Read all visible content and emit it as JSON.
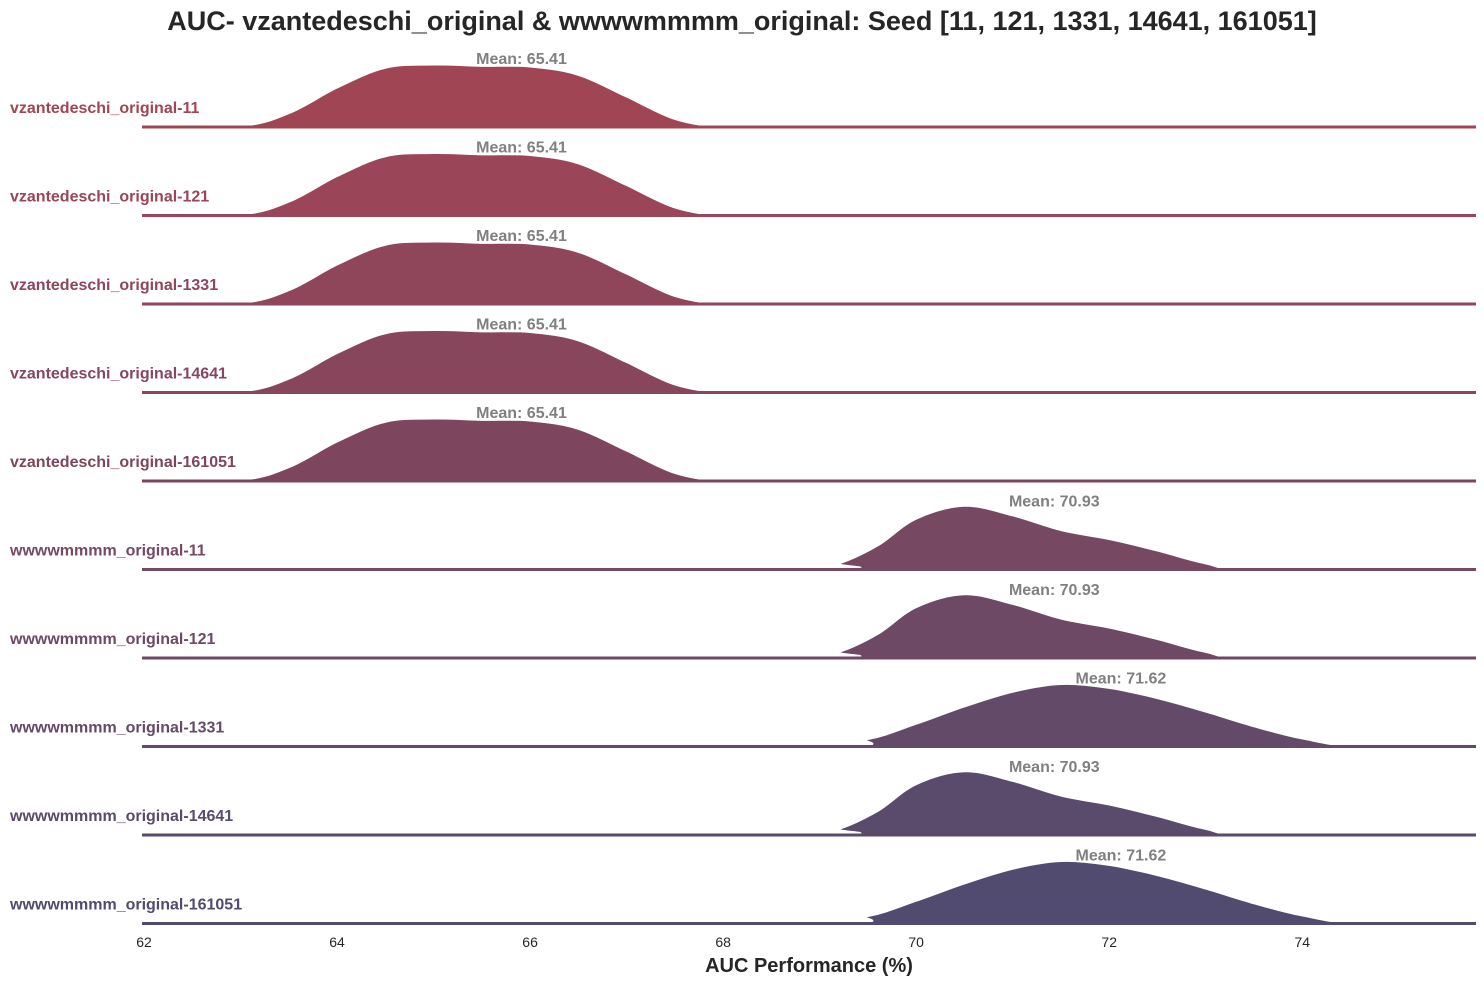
{
  "chart_data": {
    "type": "area",
    "subtype": "ridgeline-density",
    "title": "AUC- vzantedeschi_original & wwwwmmmm_original: Seed [11, 121, 1331, 14641, 161051]",
    "xlabel": "AUC Performance (%)",
    "ylabel": "",
    "xlim": [
      62,
      75.8
    ],
    "xticks": [
      62,
      64,
      66,
      68,
      70,
      72,
      74
    ],
    "grid": false,
    "series": [
      {
        "name": "vzantedeschi_original-11",
        "color": "#a04554",
        "mean": 65.41,
        "mean_label": "Mean: 65.41",
        "density": {
          "x": [
            62.0,
            63.0,
            63.5,
            64.0,
            64.5,
            65.0,
            65.5,
            66.0,
            66.5,
            67.0,
            67.5,
            68.0,
            68.5
          ],
          "y": [
            0.0,
            0.02,
            0.22,
            0.62,
            0.93,
            0.98,
            0.96,
            0.95,
            0.82,
            0.48,
            0.13,
            0.0,
            0.0
          ]
        }
      },
      {
        "name": "vzantedeschi_original-121",
        "color": "#9a4558",
        "mean": 65.41,
        "mean_label": "Mean: 65.41",
        "density": {
          "x": [
            62.0,
            63.0,
            63.5,
            64.0,
            64.5,
            65.0,
            65.5,
            66.0,
            66.5,
            67.0,
            67.5,
            68.0,
            68.5
          ],
          "y": [
            0.0,
            0.02,
            0.22,
            0.62,
            0.93,
            0.98,
            0.96,
            0.95,
            0.82,
            0.48,
            0.13,
            0.0,
            0.0
          ]
        }
      },
      {
        "name": "vzantedeschi_original-1331",
        "color": "#8f465a",
        "mean": 65.41,
        "mean_label": "Mean: 65.41",
        "density": {
          "x": [
            62.0,
            63.0,
            63.5,
            64.0,
            64.5,
            65.0,
            65.5,
            66.0,
            66.5,
            67.0,
            67.5,
            68.0,
            68.5
          ],
          "y": [
            0.0,
            0.02,
            0.22,
            0.62,
            0.93,
            0.98,
            0.96,
            0.95,
            0.82,
            0.48,
            0.13,
            0.0,
            0.0
          ]
        }
      },
      {
        "name": "vzantedeschi_original-14641",
        "color": "#87465c",
        "mean": 65.41,
        "mean_label": "Mean: 65.41",
        "density": {
          "x": [
            62.0,
            63.0,
            63.5,
            64.0,
            64.5,
            65.0,
            65.5,
            66.0,
            66.5,
            67.0,
            67.5,
            68.0,
            68.5
          ],
          "y": [
            0.0,
            0.02,
            0.22,
            0.62,
            0.93,
            0.98,
            0.96,
            0.95,
            0.82,
            0.48,
            0.13,
            0.0,
            0.0
          ]
        }
      },
      {
        "name": "vzantedeschi_original-161051",
        "color": "#7e465e",
        "mean": 65.41,
        "mean_label": "Mean: 65.41",
        "density": {
          "x": [
            62.0,
            63.0,
            63.5,
            64.0,
            64.5,
            65.0,
            65.5,
            66.0,
            66.5,
            67.0,
            67.5,
            68.0,
            68.5
          ],
          "y": [
            0.0,
            0.02,
            0.22,
            0.62,
            0.93,
            0.98,
            0.96,
            0.95,
            0.82,
            0.48,
            0.13,
            0.0,
            0.0
          ]
        }
      },
      {
        "name": "wwwwmmmm_original-11",
        "color": "#764862",
        "mean": 70.93,
        "mean_label": "Mean: 70.93",
        "density": {
          "x": [
            62.0,
            68.8,
            69.2,
            69.6,
            70.0,
            70.5,
            71.0,
            71.5,
            72.0,
            72.5,
            73.0,
            73.5,
            75.8
          ],
          "y": [
            0.0,
            0.0,
            0.1,
            0.38,
            0.8,
            1.0,
            0.85,
            0.62,
            0.48,
            0.3,
            0.1,
            0.0,
            0.0
          ]
        }
      },
      {
        "name": "wwwwmmmm_original-121",
        "color": "#6d4966",
        "mean": 70.93,
        "mean_label": "Mean: 70.93",
        "density": {
          "x": [
            62.0,
            68.8,
            69.2,
            69.6,
            70.0,
            70.5,
            71.0,
            71.5,
            72.0,
            72.5,
            73.0,
            73.5,
            75.8
          ],
          "y": [
            0.0,
            0.0,
            0.1,
            0.38,
            0.8,
            1.0,
            0.85,
            0.62,
            0.48,
            0.3,
            0.1,
            0.0,
            0.0
          ]
        }
      },
      {
        "name": "wwwwmmmm_original-1331",
        "color": "#644a69",
        "mean": 71.62,
        "mean_label": "Mean: 71.62",
        "density": {
          "x": [
            62.0,
            68.8,
            69.5,
            70.0,
            70.5,
            71.0,
            71.5,
            72.0,
            72.5,
            73.0,
            73.5,
            74.0,
            74.6,
            75.8
          ],
          "y": [
            0.0,
            0.0,
            0.12,
            0.36,
            0.63,
            0.86,
            0.98,
            0.92,
            0.76,
            0.55,
            0.32,
            0.13,
            0.0,
            0.0
          ]
        }
      },
      {
        "name": "wwwwmmmm_original-14641",
        "color": "#5a4a6c",
        "mean": 70.93,
        "mean_label": "Mean: 70.93",
        "density": {
          "x": [
            62.0,
            68.8,
            69.2,
            69.6,
            70.0,
            70.5,
            71.0,
            71.5,
            72.0,
            72.5,
            73.0,
            73.5,
            75.8
          ],
          "y": [
            0.0,
            0.0,
            0.1,
            0.38,
            0.8,
            1.0,
            0.85,
            0.62,
            0.48,
            0.3,
            0.1,
            0.0,
            0.0
          ]
        }
      },
      {
        "name": "wwwwmmmm_original-161051",
        "color": "#514b6f",
        "mean": 71.62,
        "mean_label": "Mean: 71.62",
        "density": {
          "x": [
            62.0,
            68.8,
            69.5,
            70.0,
            70.5,
            71.0,
            71.5,
            72.0,
            72.5,
            73.0,
            73.5,
            74.0,
            74.6,
            75.8
          ],
          "y": [
            0.0,
            0.0,
            0.12,
            0.36,
            0.63,
            0.86,
            0.98,
            0.92,
            0.76,
            0.55,
            0.32,
            0.13,
            0.0,
            0.0
          ]
        }
      }
    ]
  }
}
